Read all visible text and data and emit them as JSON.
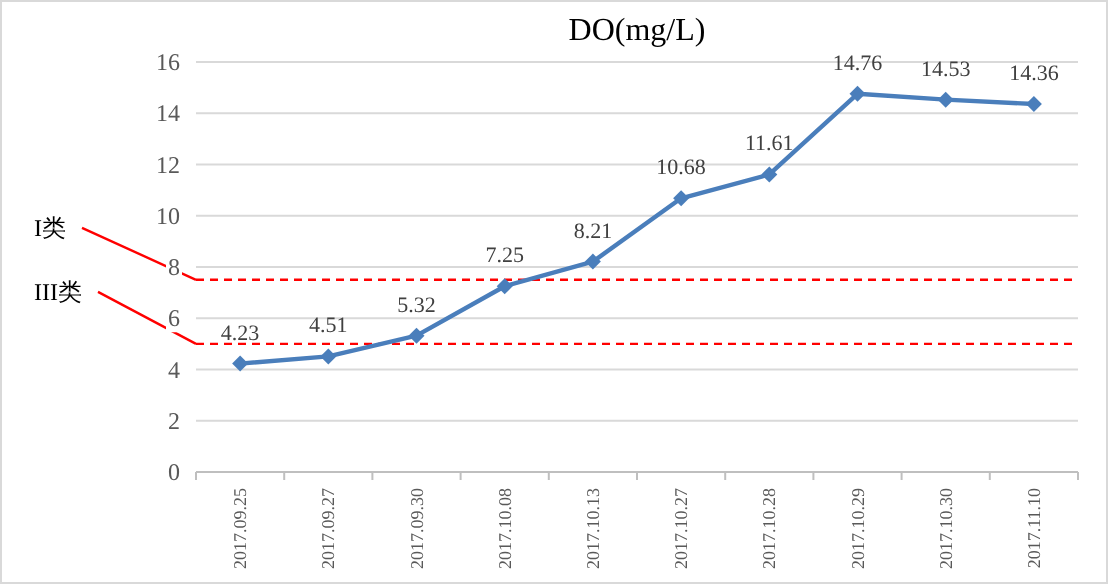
{
  "chart_data": {
    "type": "line",
    "title": "DO(mg/L)",
    "categories": [
      "2017.09.25",
      "2017.09.27",
      "2017.09.30",
      "2017.10.08",
      "2017.10.13",
      "2017.10.27",
      "2017.10.28",
      "2017.10.29",
      "2017.10.30",
      "2017.11.10"
    ],
    "series": [
      {
        "color": "#4a7ebb",
        "values": [
          4.23,
          4.51,
          5.32,
          7.25,
          8.21,
          10.68,
          11.61,
          14.76,
          14.53,
          14.36
        ]
      }
    ],
    "ylim": [
      0,
      16
    ],
    "yticks": [
      0,
      2,
      4,
      6,
      8,
      10,
      12,
      14,
      16
    ],
    "grid": "y",
    "marker": "diamond",
    "line_style": "solid",
    "data_labels": true,
    "ref_lines": [
      {
        "axis": "y",
        "value": 7.5,
        "label": "I类",
        "color": "#ff0000",
        "line_style": "dashed"
      },
      {
        "axis": "y",
        "value": 5,
        "label": "III类",
        "color": "#ff0000",
        "line_style": "dashed"
      }
    ]
  }
}
